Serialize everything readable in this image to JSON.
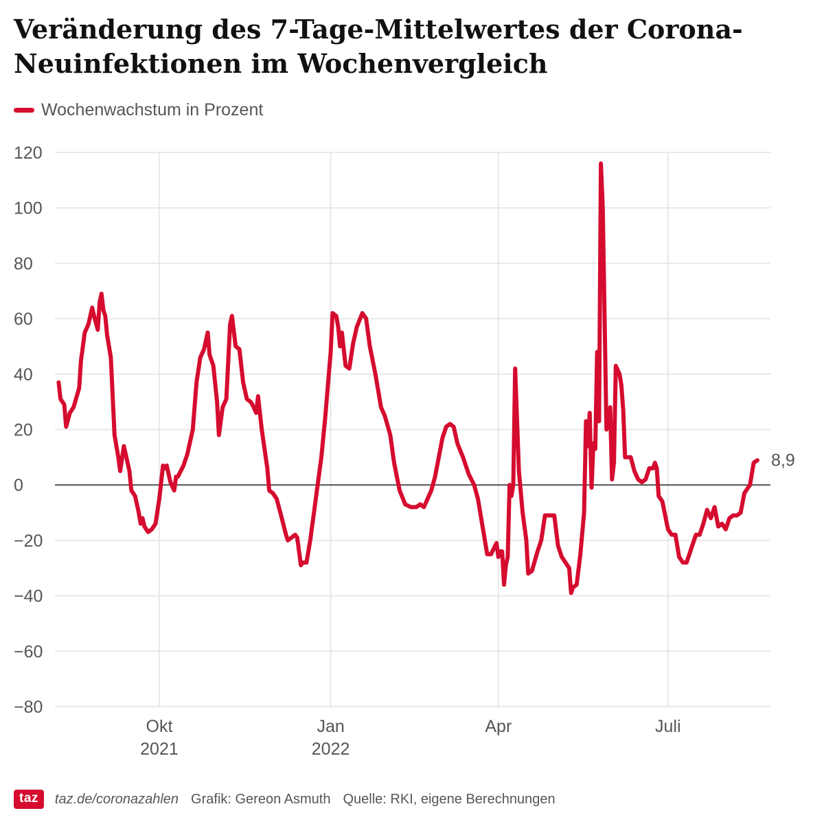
{
  "footer": {
    "logo": "taz",
    "link": "taz.de/coronazahlen",
    "credit": "Grafik: Gereon Asmuth",
    "source": "Quelle: RKI, eigene Berechnungen"
  },
  "colors": {
    "series": "#d50c2f",
    "grid": "#e2e2e2",
    "zero_line": "#222222",
    "text": "#555555"
  },
  "chart_data": {
    "type": "line",
    "title": "Veränderung des 7-Tage-Mittelwertes der Corona-Neuinfektionen im Wochenvergleich",
    "legend": "top-left",
    "grid": true,
    "ylim": [
      -80,
      120
    ],
    "y_ticks": [
      "120",
      "100",
      "80",
      "60",
      "40",
      "20",
      "0",
      "−20",
      "−40",
      "−60",
      "−80"
    ],
    "y_tick_values": [
      120,
      100,
      80,
      60,
      40,
      20,
      0,
      -20,
      -40,
      -60,
      -80
    ],
    "xlim": [
      "2021-08-06",
      "2022-08-25"
    ],
    "x_ticks": [
      {
        "date": "2021-10-01",
        "line1": "Okt",
        "line2": "2021"
      },
      {
        "date": "2022-01-01",
        "line1": "Jan",
        "line2": "2022"
      },
      {
        "date": "2022-04-01",
        "line1": "Apr",
        "line2": ""
      },
      {
        "date": "2022-07-01",
        "line1": "Juli",
        "line2": ""
      }
    ],
    "series": [
      {
        "name": "Wochenwachstum in Prozent",
        "last_value_label": "8,9",
        "points": [
          [
            "2021-08-08",
            37
          ],
          [
            "2021-08-09",
            31
          ],
          [
            "2021-08-11",
            29
          ],
          [
            "2021-08-12",
            21
          ],
          [
            "2021-08-14",
            26
          ],
          [
            "2021-08-16",
            28
          ],
          [
            "2021-08-19",
            35
          ],
          [
            "2021-08-20",
            45
          ],
          [
            "2021-08-22",
            55
          ],
          [
            "2021-08-24",
            58
          ],
          [
            "2021-08-26",
            64
          ],
          [
            "2021-08-27",
            61
          ],
          [
            "2021-08-29",
            56
          ],
          [
            "2021-08-30",
            66
          ],
          [
            "2021-08-31",
            69
          ],
          [
            "2021-09-01",
            63
          ],
          [
            "2021-09-02",
            61
          ],
          [
            "2021-09-03",
            54
          ],
          [
            "2021-09-05",
            46
          ],
          [
            "2021-09-07",
            18
          ],
          [
            "2021-09-09",
            10
          ],
          [
            "2021-09-10",
            5
          ],
          [
            "2021-09-12",
            14
          ],
          [
            "2021-09-13",
            11
          ],
          [
            "2021-09-15",
            5
          ],
          [
            "2021-09-16",
            -2
          ],
          [
            "2021-09-18",
            -4
          ],
          [
            "2021-09-20",
            -10
          ],
          [
            "2021-09-21",
            -14
          ],
          [
            "2021-09-22",
            -12
          ],
          [
            "2021-09-23",
            -15
          ],
          [
            "2021-09-25",
            -17
          ],
          [
            "2021-09-27",
            -16
          ],
          [
            "2021-09-29",
            -14
          ],
          [
            "2021-10-01",
            -5
          ],
          [
            "2021-10-03",
            7
          ],
          [
            "2021-10-04",
            6
          ],
          [
            "2021-10-05",
            7
          ],
          [
            "2021-10-07",
            1
          ],
          [
            "2021-10-09",
            -2
          ],
          [
            "2021-10-10",
            3
          ],
          [
            "2021-10-11",
            3
          ],
          [
            "2021-10-14",
            7
          ],
          [
            "2021-10-16",
            11
          ],
          [
            "2021-10-19",
            20
          ],
          [
            "2021-10-21",
            37
          ],
          [
            "2021-10-23",
            46
          ],
          [
            "2021-10-25",
            49
          ],
          [
            "2021-10-27",
            55
          ],
          [
            "2021-10-28",
            47
          ],
          [
            "2021-10-30",
            43
          ],
          [
            "2021-11-01",
            30
          ],
          [
            "2021-11-02",
            18
          ],
          [
            "2021-11-04",
            28
          ],
          [
            "2021-11-06",
            31
          ],
          [
            "2021-11-08",
            58
          ],
          [
            "2021-11-09",
            61
          ],
          [
            "2021-11-11",
            50
          ],
          [
            "2021-11-13",
            49
          ],
          [
            "2021-11-15",
            37
          ],
          [
            "2021-11-17",
            31
          ],
          [
            "2021-11-19",
            30
          ],
          [
            "2021-11-20",
            29
          ],
          [
            "2021-11-22",
            26
          ],
          [
            "2021-11-23",
            32
          ],
          [
            "2021-11-25",
            20
          ],
          [
            "2021-11-28",
            6
          ],
          [
            "2021-11-29",
            -2
          ],
          [
            "2021-12-01",
            -3
          ],
          [
            "2021-12-03",
            -5
          ],
          [
            "2021-12-05",
            -10
          ],
          [
            "2021-12-08",
            -18
          ],
          [
            "2021-12-09",
            -20
          ],
          [
            "2021-12-11",
            -19
          ],
          [
            "2021-12-13",
            -18
          ],
          [
            "2021-12-14",
            -19
          ],
          [
            "2021-12-16",
            -29
          ],
          [
            "2021-12-17",
            -28
          ],
          [
            "2021-12-19",
            -28
          ],
          [
            "2021-12-21",
            -20
          ],
          [
            "2021-12-23",
            -10
          ],
          [
            "2021-12-25",
            0
          ],
          [
            "2021-12-27",
            10
          ],
          [
            "2021-12-29",
            24
          ],
          [
            "2021-12-31",
            40
          ],
          [
            "2022-01-01",
            48
          ],
          [
            "2022-01-02",
            62
          ],
          [
            "2022-01-04",
            61
          ],
          [
            "2022-01-05",
            57
          ],
          [
            "2022-01-06",
            50
          ],
          [
            "2022-01-07",
            55
          ],
          [
            "2022-01-09",
            43
          ],
          [
            "2022-01-11",
            42
          ],
          [
            "2022-01-13",
            51
          ],
          [
            "2022-01-15",
            57
          ],
          [
            "2022-01-18",
            62
          ],
          [
            "2022-01-20",
            60
          ],
          [
            "2022-01-22",
            50
          ],
          [
            "2022-01-25",
            40
          ],
          [
            "2022-01-28",
            28
          ],
          [
            "2022-01-30",
            25
          ],
          [
            "2022-02-02",
            18
          ],
          [
            "2022-02-04",
            8
          ],
          [
            "2022-02-07",
            -2
          ],
          [
            "2022-02-10",
            -7
          ],
          [
            "2022-02-13",
            -8
          ],
          [
            "2022-02-16",
            -8
          ],
          [
            "2022-02-18",
            -7
          ],
          [
            "2022-02-20",
            -8
          ],
          [
            "2022-02-22",
            -5
          ],
          [
            "2022-02-24",
            -2
          ],
          [
            "2022-02-26",
            3
          ],
          [
            "2022-02-28",
            10
          ],
          [
            "2022-03-02",
            17
          ],
          [
            "2022-03-04",
            21
          ],
          [
            "2022-03-06",
            22
          ],
          [
            "2022-03-08",
            21
          ],
          [
            "2022-03-10",
            15
          ],
          [
            "2022-03-13",
            10
          ],
          [
            "2022-03-16",
            4
          ],
          [
            "2022-03-19",
            0
          ],
          [
            "2022-03-21",
            -5
          ],
          [
            "2022-03-24",
            -17
          ],
          [
            "2022-03-26",
            -25
          ],
          [
            "2022-03-28",
            -25
          ],
          [
            "2022-03-31",
            -21
          ],
          [
            "2022-04-01",
            -26
          ],
          [
            "2022-04-02",
            -24
          ],
          [
            "2022-04-03",
            -24
          ],
          [
            "2022-04-04",
            -36
          ],
          [
            "2022-04-05",
            -29
          ],
          [
            "2022-04-06",
            -26
          ],
          [
            "2022-04-07",
            0
          ],
          [
            "2022-04-08",
            -4
          ],
          [
            "2022-04-09",
            0
          ],
          [
            "2022-04-10",
            42
          ],
          [
            "2022-04-12",
            5
          ],
          [
            "2022-04-14",
            -10
          ],
          [
            "2022-04-16",
            -20
          ],
          [
            "2022-04-17",
            -32
          ],
          [
            "2022-04-19",
            -31
          ],
          [
            "2022-04-22",
            -24
          ],
          [
            "2022-04-24",
            -20
          ],
          [
            "2022-04-26",
            -11
          ],
          [
            "2022-04-28",
            -11
          ],
          [
            "2022-05-01",
            -11
          ],
          [
            "2022-05-03",
            -22
          ],
          [
            "2022-05-05",
            -26
          ],
          [
            "2022-05-07",
            -28
          ],
          [
            "2022-05-09",
            -30
          ],
          [
            "2022-05-10",
            -39
          ],
          [
            "2022-05-11",
            -37
          ],
          [
            "2022-05-13",
            -36
          ],
          [
            "2022-05-15",
            -25
          ],
          [
            "2022-05-17",
            -10
          ],
          [
            "2022-05-18",
            23
          ],
          [
            "2022-05-19",
            14
          ],
          [
            "2022-05-20",
            26
          ],
          [
            "2022-05-21",
            -1
          ],
          [
            "2022-05-22",
            15
          ],
          [
            "2022-05-23",
            13
          ],
          [
            "2022-05-24",
            48
          ],
          [
            "2022-05-25",
            23
          ],
          [
            "2022-05-26",
            116
          ],
          [
            "2022-05-27",
            100
          ],
          [
            "2022-05-28",
            60
          ],
          [
            "2022-05-29",
            20
          ],
          [
            "2022-05-30",
            22
          ],
          [
            "2022-05-31",
            28
          ],
          [
            "2022-06-01",
            2
          ],
          [
            "2022-06-02",
            8
          ],
          [
            "2022-06-03",
            43
          ],
          [
            "2022-06-05",
            40
          ],
          [
            "2022-06-06",
            36
          ],
          [
            "2022-06-07",
            27
          ],
          [
            "2022-06-08",
            10
          ],
          [
            "2022-06-10",
            10
          ],
          [
            "2022-06-11",
            10
          ],
          [
            "2022-06-13",
            5
          ],
          [
            "2022-06-15",
            2
          ],
          [
            "2022-06-17",
            1
          ],
          [
            "2022-06-19",
            2
          ],
          [
            "2022-06-21",
            6
          ],
          [
            "2022-06-23",
            6
          ],
          [
            "2022-06-24",
            8
          ],
          [
            "2022-06-25",
            6
          ],
          [
            "2022-06-26",
            -4
          ],
          [
            "2022-06-28",
            -6
          ],
          [
            "2022-07-01",
            -16
          ],
          [
            "2022-07-03",
            -18
          ],
          [
            "2022-07-05",
            -18
          ],
          [
            "2022-07-07",
            -26
          ],
          [
            "2022-07-09",
            -28
          ],
          [
            "2022-07-11",
            -28
          ],
          [
            "2022-07-14",
            -22
          ],
          [
            "2022-07-16",
            -18
          ],
          [
            "2022-07-18",
            -18
          ],
          [
            "2022-07-20",
            -14
          ],
          [
            "2022-07-22",
            -9
          ],
          [
            "2022-07-24",
            -12
          ],
          [
            "2022-07-26",
            -8
          ],
          [
            "2022-07-28",
            -15
          ],
          [
            "2022-07-30",
            -14
          ],
          [
            "2022-08-01",
            -16
          ],
          [
            "2022-08-03",
            -12
          ],
          [
            "2022-08-05",
            -11
          ],
          [
            "2022-08-07",
            -11
          ],
          [
            "2022-08-09",
            -10
          ],
          [
            "2022-08-11",
            -3
          ],
          [
            "2022-08-13",
            -1
          ],
          [
            "2022-08-14",
            0
          ],
          [
            "2022-08-16",
            8
          ],
          [
            "2022-08-18",
            8.9
          ]
        ]
      }
    ]
  }
}
